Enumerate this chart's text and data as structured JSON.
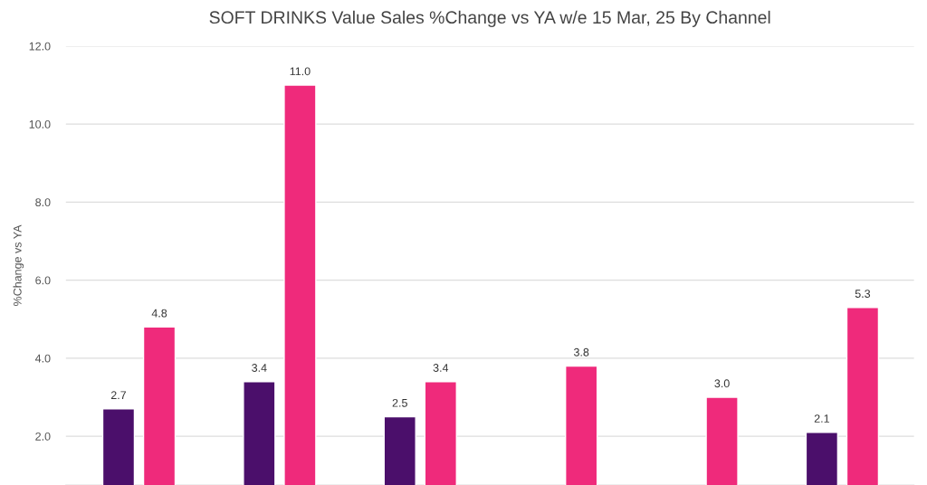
{
  "chart_data": {
    "type": "bar",
    "title": "SOFT DRINKS Value Sales %Change vs YA w/e 15 Mar, 25 By Channel",
    "ylabel": "%Change vs YA",
    "categories": [
      null,
      null,
      null,
      null,
      null,
      null
    ],
    "series": [
      {
        "color": "#4b0f6b",
        "values": [
          2.7,
          3.4,
          2.5,
          null,
          null,
          2.1
        ],
        "value_labels": [
          "2.7",
          "3.4",
          "2.5",
          null,
          null,
          "2.1"
        ]
      },
      {
        "color": "#ef2a7b",
        "values": [
          4.8,
          11.0,
          3.4,
          3.8,
          3.0,
          5.3
        ],
        "value_labels": [
          "4.8",
          "11.0",
          "3.4",
          "3.8",
          "3.0",
          "5.3"
        ]
      }
    ],
    "ylim": [
      0.75,
      12.0
    ],
    "yticks": [
      {
        "value": 2,
        "label": "2.0"
      },
      {
        "value": 4,
        "label": "4.0"
      },
      {
        "value": 6,
        "label": "6.0"
      },
      {
        "value": 8,
        "label": "8.0"
      },
      {
        "value": 10,
        "label": "10.0"
      },
      {
        "value": 12,
        "label": "12.0"
      }
    ],
    "grid": "y",
    "tick_labels": "y",
    "legend": false
  }
}
